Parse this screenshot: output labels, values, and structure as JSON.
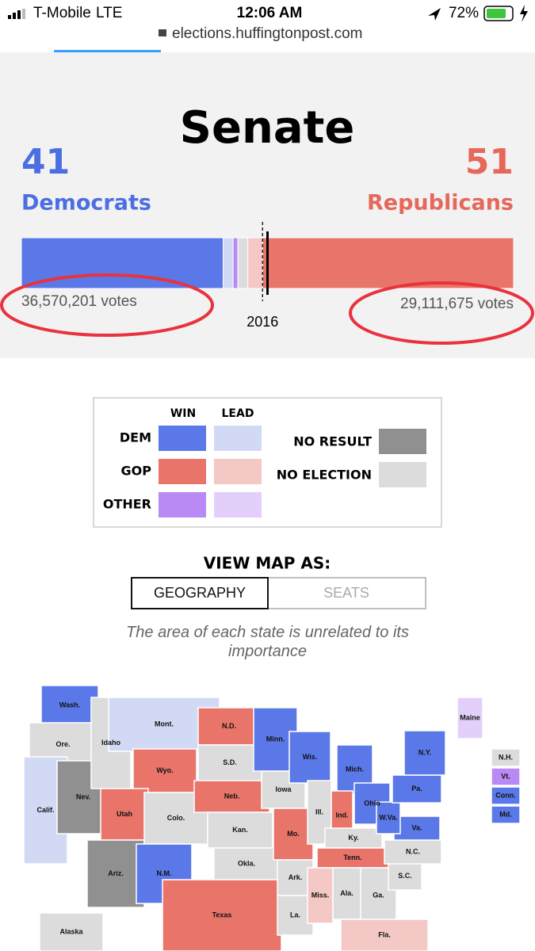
{
  "status_bar": {
    "carrier": "T-Mobile",
    "network": "LTE",
    "time": "12:06 AM",
    "battery": "72%",
    "url": "elections.huffingtonpost.com"
  },
  "header": {
    "title": "Senate",
    "democrats": {
      "seats": 41,
      "label": "Democrats",
      "votes": "36,570,201 votes"
    },
    "republicans": {
      "seats": 51,
      "label": "Republicans",
      "votes": "29,111,675 votes"
    },
    "bar_range": [
      0,
      100
    ],
    "middle_segments": [
      {
        "value": 2,
        "status": "dem_lead"
      },
      {
        "value": 1,
        "status": "other_win"
      },
      {
        "value": 2,
        "status": "no_election"
      },
      {
        "value": 3,
        "status": "gop_lead"
      }
    ],
    "reference": {
      "value": 49,
      "label": "2016"
    },
    "majority": 50
  },
  "statuses": {
    "dem_win": "#5a78e8",
    "dem_lead": "#d2d9f5",
    "gop_win": "#e9756a",
    "gop_lead": "#f4c8c4",
    "other_win": "#b98af5",
    "other_lead": "#e2d0fb",
    "no_result": "#909090",
    "no_election": "#dcdcdc"
  },
  "legend": {
    "columns": [
      "WIN",
      "LEAD"
    ],
    "rows": [
      {
        "label": "DEM",
        "statuses": [
          "dem_win",
          "dem_lead"
        ]
      },
      {
        "label": "GOP",
        "statuses": [
          "gop_win",
          "gop_lead"
        ]
      },
      {
        "label": "OTHER",
        "statuses": [
          "other_win",
          "other_lead"
        ]
      }
    ],
    "extra": [
      {
        "label": "NO RESULT",
        "status": "no_result"
      },
      {
        "label": "NO ELECTION",
        "status": "no_election"
      }
    ]
  },
  "view": {
    "heading": "VIEW MAP AS:",
    "options": [
      "GEOGRAPHY",
      "SEATS"
    ],
    "note": "The area of each state is unrelated to its importance"
  },
  "map": {
    "states": [
      {
        "label": "Wash.",
        "status": "dem_win"
      },
      {
        "label": "Ore.",
        "status": "no_election"
      },
      {
        "label": "Calif.",
        "status": "dem_lead"
      },
      {
        "label": "Nev.",
        "status": "no_result"
      },
      {
        "label": "Idaho",
        "status": "no_election"
      },
      {
        "label": "Mont.",
        "status": "dem_lead"
      },
      {
        "label": "Wyo.",
        "status": "gop_win"
      },
      {
        "label": "Utah",
        "status": "gop_win"
      },
      {
        "label": "Ariz.",
        "status": "no_result"
      },
      {
        "label": "Colo.",
        "status": "no_election"
      },
      {
        "label": "N.M.",
        "status": "dem_win"
      },
      {
        "label": "N.D.",
        "status": "gop_win"
      },
      {
        "label": "S.D.",
        "status": "no_election"
      },
      {
        "label": "Neb.",
        "status": "gop_win"
      },
      {
        "label": "Kan.",
        "status": "no_election"
      },
      {
        "label": "Okla.",
        "status": "no_election"
      },
      {
        "label": "Texas",
        "status": "gop_win"
      },
      {
        "label": "Minn.",
        "status": "dem_win"
      },
      {
        "label": "Iowa",
        "status": "no_election"
      },
      {
        "label": "Mo.",
        "status": "gop_win"
      },
      {
        "label": "Ark.",
        "status": "no_election"
      },
      {
        "label": "La.",
        "status": "no_election"
      },
      {
        "label": "Wis.",
        "status": "dem_win"
      },
      {
        "label": "Ill.",
        "status": "no_election"
      },
      {
        "label": "Mich.",
        "status": "dem_win"
      },
      {
        "label": "Ind.",
        "status": "gop_win"
      },
      {
        "label": "Ohio",
        "status": "dem_win"
      },
      {
        "label": "Ky.",
        "status": "no_election"
      },
      {
        "label": "Tenn.",
        "status": "gop_win"
      },
      {
        "label": "Miss.",
        "status": "gop_lead"
      },
      {
        "label": "Ala.",
        "status": "no_election"
      },
      {
        "label": "Ga.",
        "status": "no_election"
      },
      {
        "label": "Fla.",
        "status": "gop_lead"
      },
      {
        "label": "S.C.",
        "status": "no_election"
      },
      {
        "label": "N.C.",
        "status": "no_election"
      },
      {
        "label": "Va.",
        "status": "dem_win"
      },
      {
        "label": "W.Va.",
        "status": "dem_win"
      },
      {
        "label": "Pa.",
        "status": "dem_win"
      },
      {
        "label": "N.Y.",
        "status": "dem_win"
      },
      {
        "label": "Maine",
        "status": "other_lead"
      },
      {
        "label": "Alaska",
        "status": "no_election"
      },
      {
        "label": "N.H.",
        "status": "no_election"
      },
      {
        "label": "Vt.",
        "status": "other_win"
      },
      {
        "label": "Conn.",
        "status": "dem_win"
      },
      {
        "label": "Md.",
        "status": "dem_win"
      }
    ]
  }
}
